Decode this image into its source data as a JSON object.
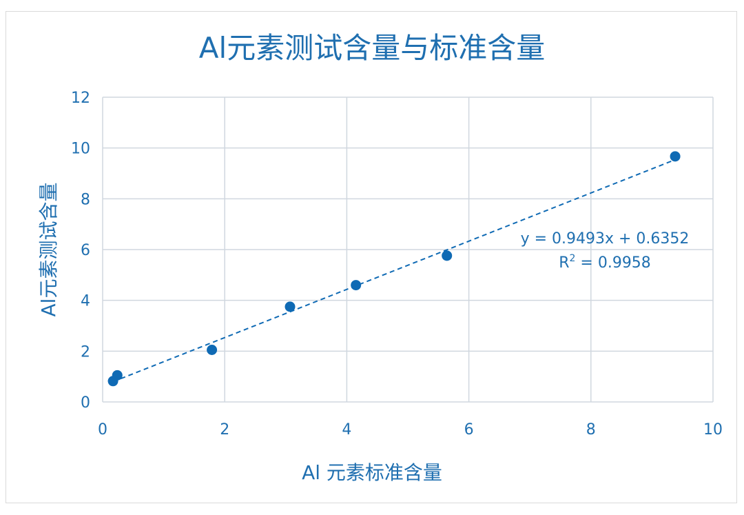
{
  "chart_data": {
    "type": "scatter",
    "title": "Al元素测试含量与标准含量",
    "xlabel": "Al 元素标准含量",
    "ylabel": "Al元素测试含量",
    "xlim": [
      0,
      10
    ],
    "ylim": [
      0,
      12
    ],
    "x_ticks": [
      "0",
      "2",
      "4",
      "6",
      "8",
      "10"
    ],
    "y_ticks": [
      "0",
      "2",
      "4",
      "6",
      "8",
      "10",
      "12"
    ],
    "grid": true,
    "points": [
      {
        "x": 0.17,
        "y": 0.82
      },
      {
        "x": 0.24,
        "y": 1.05
      },
      {
        "x": 1.79,
        "y": 2.05
      },
      {
        "x": 3.07,
        "y": 3.75
      },
      {
        "x": 4.15,
        "y": 4.6
      },
      {
        "x": 5.64,
        "y": 5.76
      },
      {
        "x": 9.38,
        "y": 9.67
      }
    ],
    "trendline": {
      "slope": 0.9493,
      "intercept": 0.6352,
      "x_range": [
        0.17,
        9.38
      ],
      "equation_label": "y = 0.9493x + 0.6352",
      "r2_label_prefix": "R",
      "r2_label_sup": "2",
      "r2_label_value": " = 0.9958"
    },
    "colors": {
      "marker": "#0f6ab4",
      "text": "#1f6fb0",
      "grid": "#d0d7df"
    }
  }
}
